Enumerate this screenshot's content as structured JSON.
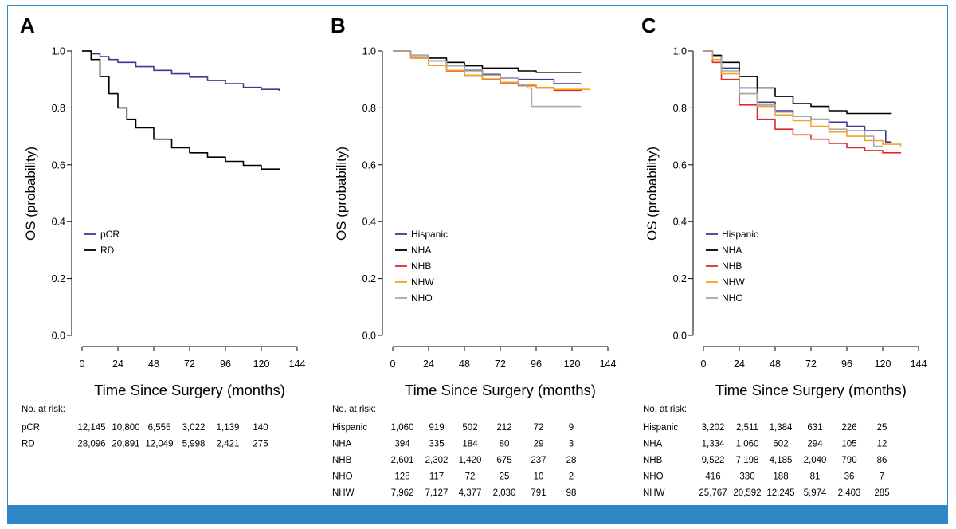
{
  "colors": {
    "frame": "#2b8ccf",
    "bottom_bar": "#2f87c8",
    "axis": "#000000"
  },
  "risk_header": "No. at risk:",
  "chart_data": [
    {
      "type": "line",
      "panel": "A",
      "ylabel": "OS (probability)",
      "xlabel": "Time Since Surgery (months)",
      "xlim": [
        0,
        144
      ],
      "ylim": [
        0,
        1.0
      ],
      "xticks": [
        "0",
        "24",
        "48",
        "72",
        "96",
        "120",
        "144"
      ],
      "yticks": [
        "0.0",
        "0.2",
        "0.4",
        "0.6",
        "0.8",
        "1.0"
      ],
      "legend_position": "bottom-left",
      "series": [
        {
          "name": "pCR",
          "color": "#3a3a8f",
          "x": [
            0,
            6,
            12,
            18,
            24,
            36,
            48,
            60,
            72,
            84,
            96,
            108,
            120,
            132
          ],
          "y": [
            1.0,
            0.99,
            0.98,
            0.97,
            0.96,
            0.945,
            0.932,
            0.92,
            0.908,
            0.896,
            0.885,
            0.872,
            0.865,
            0.86
          ]
        },
        {
          "name": "RD",
          "color": "#000000",
          "x": [
            0,
            6,
            12,
            18,
            24,
            30,
            36,
            48,
            60,
            72,
            84,
            96,
            108,
            120,
            132
          ],
          "y": [
            1.0,
            0.97,
            0.91,
            0.85,
            0.8,
            0.76,
            0.73,
            0.69,
            0.66,
            0.642,
            0.627,
            0.612,
            0.598,
            0.585,
            0.582
          ]
        }
      ],
      "risk_table": {
        "rows": [
          {
            "label": "pCR",
            "values": [
              "12,145",
              "10,800",
              "6,555",
              "3,022",
              "1,139",
              "140"
            ]
          },
          {
            "label": "RD",
            "values": [
              "28,096",
              "20,891",
              "12,049",
              "5,998",
              "2,421",
              "275"
            ]
          }
        ]
      }
    },
    {
      "type": "line",
      "panel": "B",
      "ylabel": "OS (probability)",
      "xlabel": "Time Since Surgery (months)",
      "xlim": [
        0,
        144
      ],
      "ylim": [
        0,
        1.0
      ],
      "xticks": [
        "0",
        "24",
        "48",
        "72",
        "96",
        "120",
        "144"
      ],
      "yticks": [
        "0.0",
        "0.2",
        "0.4",
        "0.6",
        "0.8",
        "1.0"
      ],
      "legend_position": "bottom-left",
      "series": [
        {
          "name": "Hispanic",
          "color": "#3a3a8f",
          "x": [
            0,
            12,
            24,
            36,
            48,
            60,
            72,
            84,
            96,
            108,
            126
          ],
          "y": [
            1.0,
            0.985,
            0.965,
            0.948,
            0.932,
            0.918,
            0.905,
            0.9,
            0.9,
            0.885,
            0.885
          ]
        },
        {
          "name": "NHA",
          "color": "#000000",
          "x": [
            0,
            12,
            24,
            36,
            48,
            60,
            72,
            84,
            96,
            108,
            126
          ],
          "y": [
            1.0,
            0.985,
            0.975,
            0.96,
            0.948,
            0.94,
            0.94,
            0.93,
            0.925,
            0.925,
            0.925
          ]
        },
        {
          "name": "NHB",
          "color": "#e02a2a",
          "x": [
            0,
            12,
            24,
            36,
            48,
            60,
            72,
            84,
            96,
            108,
            126
          ],
          "y": [
            1.0,
            0.975,
            0.95,
            0.93,
            0.912,
            0.9,
            0.888,
            0.878,
            0.87,
            0.862,
            0.86
          ]
        },
        {
          "name": "NHW",
          "color": "#f5a21b",
          "x": [
            0,
            12,
            24,
            36,
            48,
            60,
            72,
            84,
            96,
            108,
            132
          ],
          "y": [
            1.0,
            0.975,
            0.95,
            0.932,
            0.915,
            0.902,
            0.89,
            0.88,
            0.872,
            0.865,
            0.86
          ]
        },
        {
          "name": "NHO",
          "color": "#aaaaaa",
          "x": [
            0,
            12,
            24,
            36,
            48,
            60,
            72,
            84,
            90,
            93,
            126
          ],
          "y": [
            1.0,
            0.985,
            0.965,
            0.948,
            0.93,
            0.915,
            0.905,
            0.88,
            0.87,
            0.805,
            0.805
          ]
        }
      ],
      "risk_table": {
        "rows": [
          {
            "label": "Hispanic",
            "values": [
              "1,060",
              "919",
              "502",
              "212",
              "72",
              "9"
            ]
          },
          {
            "label": "NHA",
            "values": [
              "394",
              "335",
              "184",
              "80",
              "29",
              "3"
            ]
          },
          {
            "label": "NHB",
            "values": [
              "2,601",
              "2,302",
              "1,420",
              "675",
              "237",
              "28"
            ]
          },
          {
            "label": "NHO",
            "values": [
              "128",
              "117",
              "72",
              "25",
              "10",
              "2"
            ]
          },
          {
            "label": "NHW",
            "values": [
              "7,962",
              "7,127",
              "4,377",
              "2,030",
              "791",
              "98"
            ]
          }
        ]
      }
    },
    {
      "type": "line",
      "panel": "C",
      "ylabel": "OS (probability)",
      "xlabel": "Time Since Surgery (months)",
      "xlim": [
        0,
        144
      ],
      "ylim": [
        0,
        1.0
      ],
      "xticks": [
        "0",
        "24",
        "48",
        "72",
        "96",
        "120",
        "144"
      ],
      "yticks": [
        "0.0",
        "0.2",
        "0.4",
        "0.6",
        "0.8",
        "1.0"
      ],
      "legend_position": "bottom-left",
      "series": [
        {
          "name": "Hispanic",
          "color": "#3a3a8f",
          "x": [
            0,
            6,
            12,
            24,
            36,
            48,
            60,
            72,
            84,
            96,
            108,
            120,
            122,
            126
          ],
          "y": [
            1.0,
            0.98,
            0.94,
            0.87,
            0.82,
            0.79,
            0.77,
            0.76,
            0.75,
            0.735,
            0.72,
            0.72,
            0.68,
            0.68
          ]
        },
        {
          "name": "NHA",
          "color": "#000000",
          "x": [
            0,
            6,
            12,
            24,
            36,
            48,
            60,
            72,
            84,
            96,
            108,
            126
          ],
          "y": [
            1.0,
            0.985,
            0.96,
            0.91,
            0.87,
            0.84,
            0.815,
            0.805,
            0.79,
            0.78,
            0.78,
            0.78
          ]
        },
        {
          "name": "NHB",
          "color": "#e02a2a",
          "x": [
            0,
            6,
            12,
            24,
            36,
            48,
            60,
            72,
            84,
            96,
            108,
            120,
            132
          ],
          "y": [
            1.0,
            0.96,
            0.9,
            0.81,
            0.76,
            0.725,
            0.705,
            0.69,
            0.675,
            0.66,
            0.65,
            0.642,
            0.64
          ]
        },
        {
          "name": "NHW",
          "color": "#f5a21b",
          "x": [
            0,
            6,
            12,
            24,
            36,
            48,
            60,
            72,
            84,
            96,
            108,
            120,
            132
          ],
          "y": [
            1.0,
            0.97,
            0.92,
            0.85,
            0.805,
            0.775,
            0.755,
            0.735,
            0.715,
            0.7,
            0.685,
            0.672,
            0.665
          ]
        },
        {
          "name": "NHO",
          "color": "#aaaaaa",
          "x": [
            0,
            6,
            12,
            24,
            36,
            48,
            60,
            72,
            84,
            96,
            108,
            114,
            120
          ],
          "y": [
            1.0,
            0.98,
            0.93,
            0.85,
            0.81,
            0.785,
            0.77,
            0.76,
            0.725,
            0.72,
            0.7,
            0.665,
            0.665
          ]
        }
      ],
      "risk_table": {
        "rows": [
          {
            "label": "Hispanic",
            "values": [
              "3,202",
              "2,511",
              "1,384",
              "631",
              "226",
              "25"
            ]
          },
          {
            "label": "NHA",
            "values": [
              "1,334",
              "1,060",
              "602",
              "294",
              "105",
              "12"
            ]
          },
          {
            "label": "NHB",
            "values": [
              "9,522",
              "7,198",
              "4,185",
              "2,040",
              "790",
              "86"
            ]
          },
          {
            "label": "NHO",
            "values": [
              "416",
              "330",
              "188",
              "81",
              "36",
              "7"
            ]
          },
          {
            "label": "NHW",
            "values": [
              "25,767",
              "20,592",
              "12,245",
              "5,974",
              "2,403",
              "285"
            ]
          }
        ]
      }
    }
  ]
}
